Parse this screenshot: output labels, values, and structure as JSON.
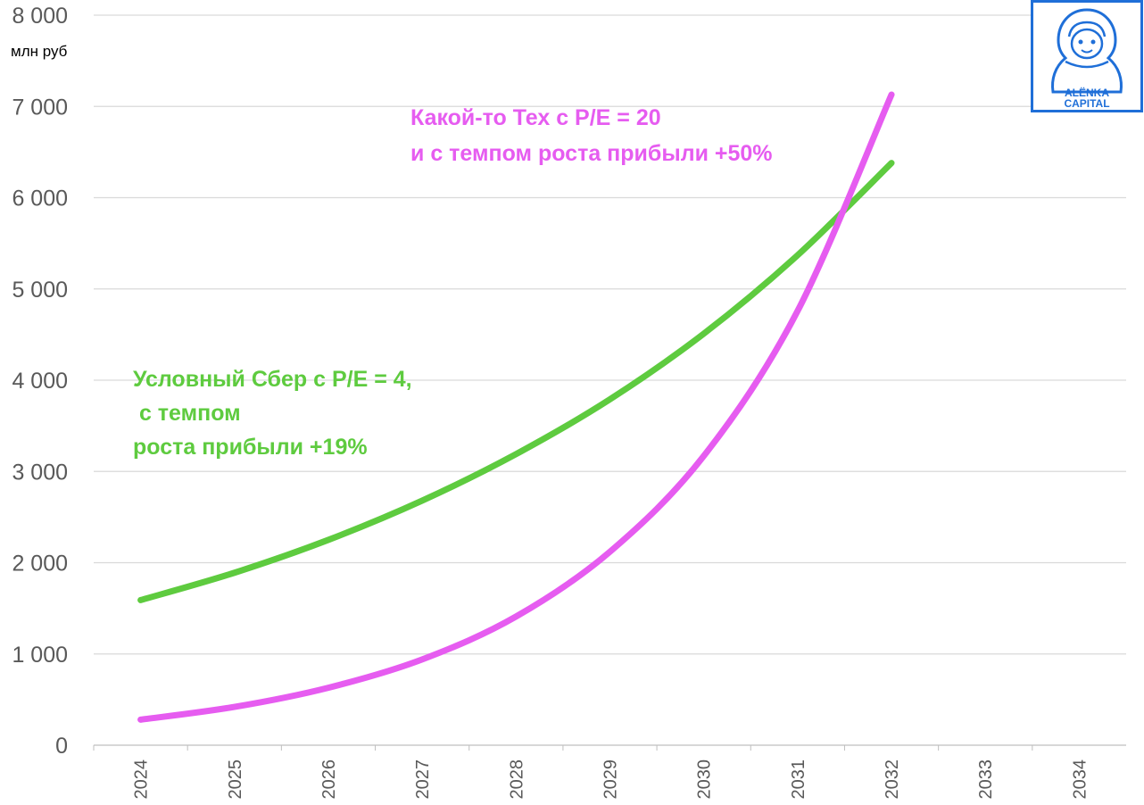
{
  "chart_data": {
    "type": "line",
    "title": "",
    "ylabel": "млн руб",
    "xlabel": "",
    "ylim": [
      0,
      8000
    ],
    "yticks": [
      0,
      1000,
      2000,
      3000,
      4000,
      5000,
      6000,
      7000,
      8000
    ],
    "ytick_labels": [
      "0",
      "1 000",
      "2 000",
      "3 000",
      "4 000",
      "5 000",
      "6 000",
      "7 000",
      "8 000"
    ],
    "categories": [
      "2024",
      "2025",
      "2026",
      "2027",
      "2028",
      "2029",
      "2030",
      "2031",
      "2032",
      "2033",
      "2034"
    ],
    "grid": true,
    "series": [
      {
        "name": "Условный Сбер",
        "color": "#5ecb3f",
        "values": [
          1590,
          1890,
          2250,
          2680,
          3190,
          3790,
          4510,
          5370,
          6380,
          null,
          null
        ]
      },
      {
        "name": "Какой-то Тех",
        "color": "#e65cf0",
        "values": [
          280,
          420,
          630,
          940,
          1410,
          2120,
          3170,
          4760,
          7130,
          null,
          null
        ]
      }
    ],
    "annotations": [
      {
        "series": "Условный Сбер",
        "color": "#5ecb3f",
        "lines": [
          "Условный Сбер с P/E = 4,",
          " с темпом",
          "роста прибыли +19%"
        ]
      },
      {
        "series": "Какой-то Тех",
        "color": "#e65cf0",
        "lines": [
          "Какой-то Тех с P/E = 20",
          "и с темпом роста прибыли +50%"
        ]
      }
    ]
  },
  "logo": {
    "line1": "ALЁNKA",
    "line2": "CAPITAL",
    "color": "#1f6fd8"
  }
}
